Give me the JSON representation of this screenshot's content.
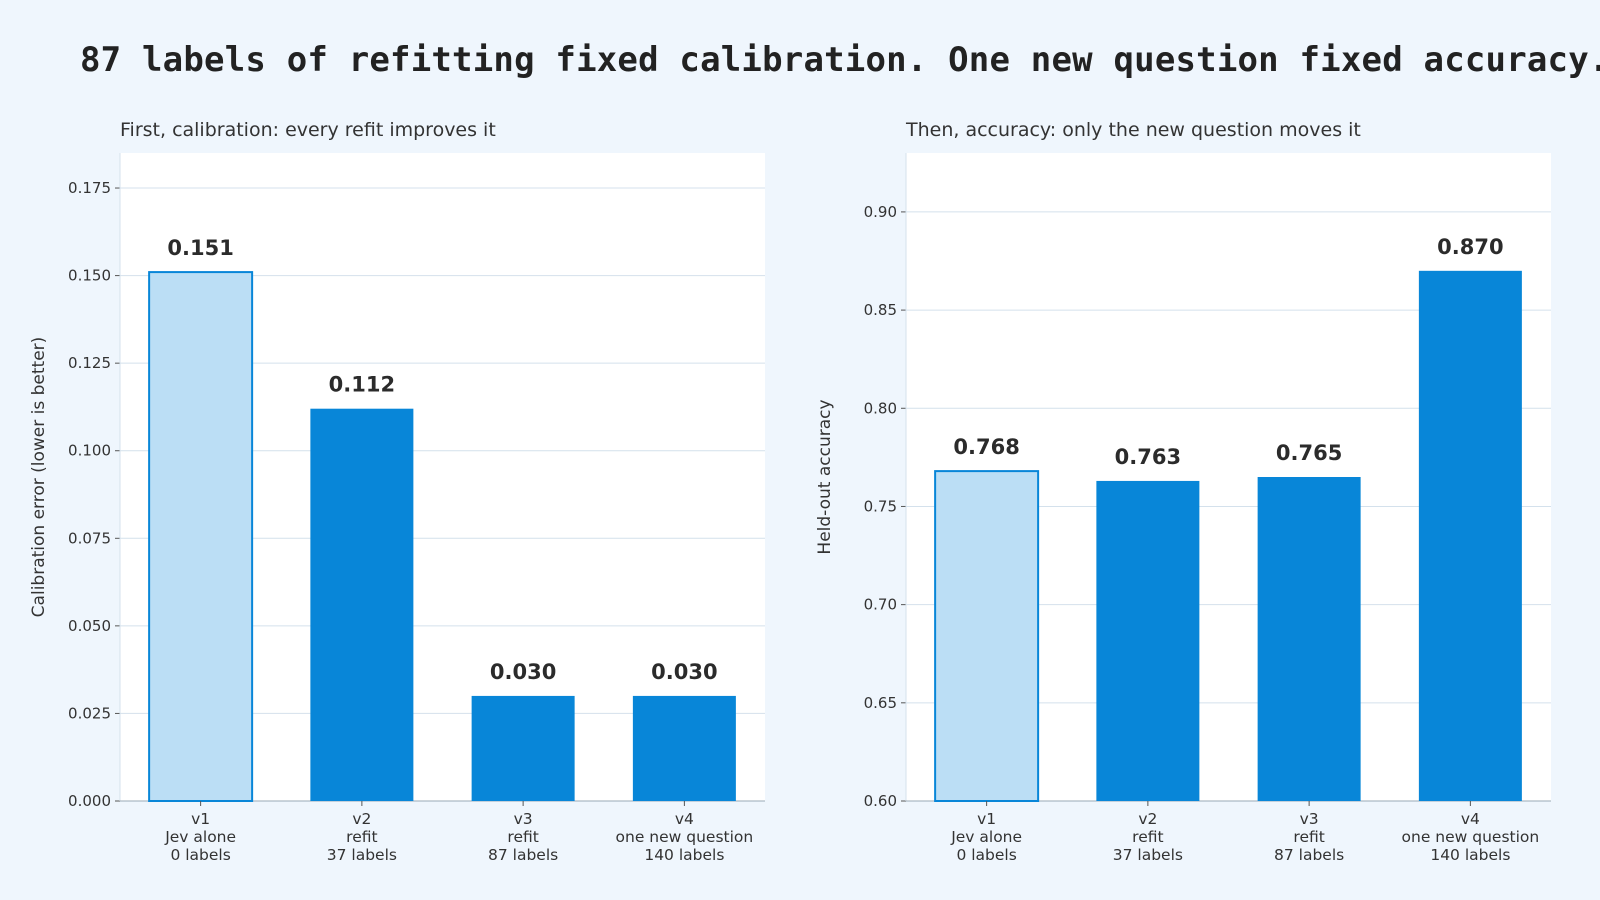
{
  "title": "87 labels of refitting fixed calibration. One new question fixed accuracy.",
  "colors": {
    "page_background": "#eff6fd",
    "plot_background": "#ffffff",
    "grid": "#d4e1ec",
    "baseline_fill": "#bbdef5",
    "baseline_stroke": "#0886d8",
    "bar_fill": "#0886d8"
  },
  "chart_data": [
    {
      "type": "bar",
      "subtitle": "First, calibration: every refit improves it",
      "ylabel": "Calibration error (lower is better)",
      "xlabel": "",
      "categories": [
        [
          "v1",
          "Jev alone",
          "0 labels"
        ],
        [
          "v2",
          "refit",
          "37 labels"
        ],
        [
          "v3",
          "refit",
          "87 labels"
        ],
        [
          "v4",
          "one new question",
          "140 labels"
        ]
      ],
      "values": [
        0.151,
        0.112,
        0.03,
        0.03
      ],
      "value_labels": [
        "0.151",
        "0.112",
        "0.030",
        "0.030"
      ],
      "highlight": [
        true,
        false,
        false,
        false
      ],
      "ylim": [
        0,
        0.185
      ],
      "yticks": [
        0.0,
        0.025,
        0.05,
        0.075,
        0.1,
        0.125,
        0.15,
        0.175
      ],
      "ytick_labels": [
        "0.000",
        "0.025",
        "0.050",
        "0.075",
        "0.100",
        "0.125",
        "0.150",
        "0.175"
      ],
      "grid": true
    },
    {
      "type": "bar",
      "subtitle": "Then, accuracy: only the new question moves it",
      "ylabel": "Held-out accuracy",
      "xlabel": "",
      "categories": [
        [
          "v1",
          "Jev alone",
          "0 labels"
        ],
        [
          "v2",
          "refit",
          "37 labels"
        ],
        [
          "v3",
          "refit",
          "87 labels"
        ],
        [
          "v4",
          "one new question",
          "140 labels"
        ]
      ],
      "values": [
        0.768,
        0.763,
        0.765,
        0.87
      ],
      "value_labels": [
        "0.768",
        "0.763",
        "0.765",
        "0.870"
      ],
      "highlight": [
        true,
        false,
        false,
        false
      ],
      "ylim": [
        0.6,
        0.93
      ],
      "yticks": [
        0.6,
        0.65,
        0.7,
        0.75,
        0.8,
        0.85,
        0.9
      ],
      "ytick_labels": [
        "0.60",
        "0.65",
        "0.70",
        "0.75",
        "0.80",
        "0.85",
        "0.90"
      ],
      "grid": true
    }
  ]
}
